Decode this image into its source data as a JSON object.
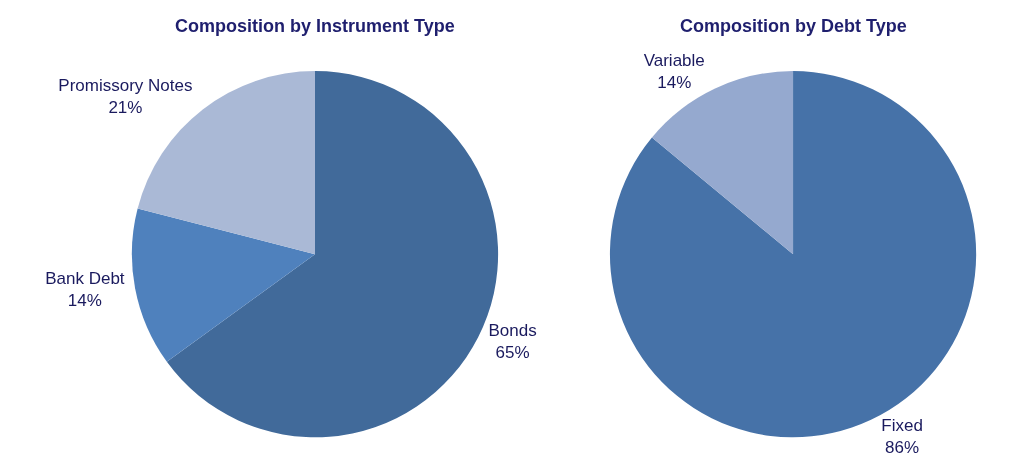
{
  "chart_data": [
    {
      "type": "pie",
      "title": "Composition by Instrument Type",
      "categories": [
        "Bonds",
        "Bank Debt",
        "Promissory Notes"
      ],
      "values": [
        65,
        14,
        21
      ],
      "value_labels": [
        "65%",
        "14%",
        "21%"
      ],
      "colors": [
        "#416a9a",
        "#4f81bd",
        "#aab9d6"
      ]
    },
    {
      "type": "pie",
      "title": "Composition by Debt Type",
      "categories": [
        "Fixed",
        "Variable"
      ],
      "values": [
        86,
        14
      ],
      "value_labels": [
        "86%",
        "14%"
      ],
      "colors": [
        "#4672a8",
        "#95a9cf"
      ]
    }
  ]
}
